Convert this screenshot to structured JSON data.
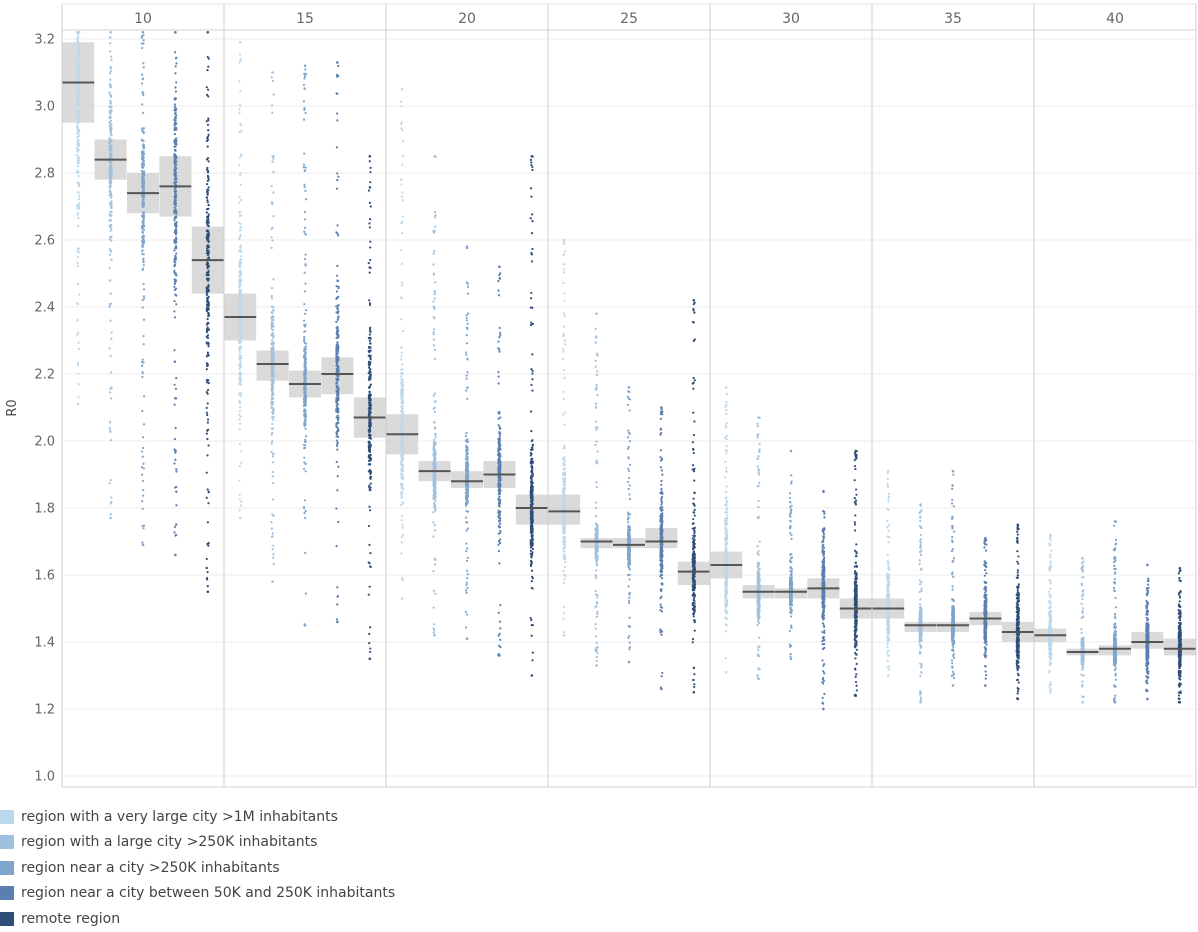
{
  "chart_data": {
    "type": "scatter",
    "chart_style": "faceted jitter strip plot with box (median line, interquartile band)",
    "ylabel": "R0",
    "ylim": [
      1.0,
      3.25
    ],
    "yticks": [
      1.0,
      1.2,
      1.4,
      1.6,
      1.8,
      2.0,
      2.2,
      2.4,
      2.6,
      2.8,
      3.0,
      3.2
    ],
    "grid": true,
    "legend_position": "bottom-left",
    "panels": [
      "10",
      "15",
      "20",
      "25",
      "30",
      "35",
      "40"
    ],
    "series": [
      {
        "name": "region with a very large city >1M inhabitants",
        "color": "#bcd8ec"
      },
      {
        "name": "region with a large city >250K inhabitants",
        "color": "#9fc1df"
      },
      {
        "name": "region near a city >250K inhabitants",
        "color": "#7ea5cc"
      },
      {
        "name": "region near a city between 50K and 250K inhabitants",
        "color": "#5b7fae"
      },
      {
        "name": "remote region",
        "color": "#2f4e7a"
      }
    ],
    "boxes": [
      {
        "panel": "10",
        "values": [
          {
            "median": 3.07,
            "q1": 2.95,
            "q3": 3.19,
            "min": 2.11,
            "max": 3.22
          },
          {
            "median": 2.84,
            "q1": 2.78,
            "q3": 2.9,
            "min": 1.77,
            "max": 3.22
          },
          {
            "median": 2.74,
            "q1": 2.68,
            "q3": 2.8,
            "min": 1.69,
            "max": 3.22
          },
          {
            "median": 2.76,
            "q1": 2.67,
            "q3": 2.85,
            "min": 1.66,
            "max": 3.22
          },
          {
            "median": 2.54,
            "q1": 2.44,
            "q3": 2.64,
            "min": 1.55,
            "max": 3.22
          }
        ]
      },
      {
        "panel": "15",
        "values": [
          {
            "median": 2.37,
            "q1": 2.3,
            "q3": 2.44,
            "min": 1.77,
            "max": 3.19
          },
          {
            "median": 2.23,
            "q1": 2.18,
            "q3": 2.27,
            "min": 1.58,
            "max": 3.1
          },
          {
            "median": 2.17,
            "q1": 2.13,
            "q3": 2.21,
            "min": 1.45,
            "max": 3.12
          },
          {
            "median": 2.2,
            "q1": 2.14,
            "q3": 2.25,
            "min": 1.46,
            "max": 3.13
          },
          {
            "median": 2.07,
            "q1": 2.01,
            "q3": 2.13,
            "min": 1.35,
            "max": 2.85
          }
        ]
      },
      {
        "panel": "20",
        "values": [
          {
            "median": 2.02,
            "q1": 1.96,
            "q3": 2.08,
            "min": 1.53,
            "max": 3.05
          },
          {
            "median": 1.91,
            "q1": 1.88,
            "q3": 1.94,
            "min": 1.42,
            "max": 2.85
          },
          {
            "median": 1.88,
            "q1": 1.86,
            "q3": 1.91,
            "min": 1.41,
            "max": 2.58
          },
          {
            "median": 1.9,
            "q1": 1.86,
            "q3": 1.94,
            "min": 1.36,
            "max": 2.52
          },
          {
            "median": 1.8,
            "q1": 1.75,
            "q3": 1.84,
            "min": 1.3,
            "max": 2.85
          }
        ]
      },
      {
        "panel": "25",
        "values": [
          {
            "median": 1.79,
            "q1": 1.75,
            "q3": 1.84,
            "min": 1.42,
            "max": 2.6
          },
          {
            "median": 1.7,
            "q1": 1.68,
            "q3": 1.71,
            "min": 1.33,
            "max": 2.38
          },
          {
            "median": 1.69,
            "q1": 1.68,
            "q3": 1.71,
            "min": 1.34,
            "max": 2.16
          },
          {
            "median": 1.7,
            "q1": 1.68,
            "q3": 1.74,
            "min": 1.26,
            "max": 2.1
          },
          {
            "median": 1.61,
            "q1": 1.57,
            "q3": 1.64,
            "min": 1.25,
            "max": 2.42
          }
        ]
      },
      {
        "panel": "30",
        "values": [
          {
            "median": 1.63,
            "q1": 1.59,
            "q3": 1.67,
            "min": 1.31,
            "max": 2.16
          },
          {
            "median": 1.55,
            "q1": 1.53,
            "q3": 1.57,
            "min": 1.29,
            "max": 2.07
          },
          {
            "median": 1.55,
            "q1": 1.53,
            "q3": 1.56,
            "min": 1.35,
            "max": 1.97
          },
          {
            "median": 1.56,
            "q1": 1.53,
            "q3": 1.59,
            "min": 1.2,
            "max": 1.85
          },
          {
            "median": 1.5,
            "q1": 1.47,
            "q3": 1.53,
            "min": 1.24,
            "max": 1.97
          }
        ]
      },
      {
        "panel": "35",
        "values": [
          {
            "median": 1.5,
            "q1": 1.47,
            "q3": 1.53,
            "min": 1.3,
            "max": 1.91
          },
          {
            "median": 1.45,
            "q1": 1.43,
            "q3": 1.46,
            "min": 1.22,
            "max": 1.81
          },
          {
            "median": 1.45,
            "q1": 1.43,
            "q3": 1.46,
            "min": 1.27,
            "max": 1.91
          },
          {
            "median": 1.47,
            "q1": 1.45,
            "q3": 1.49,
            "min": 1.27,
            "max": 1.71
          },
          {
            "median": 1.43,
            "q1": 1.4,
            "q3": 1.46,
            "min": 1.23,
            "max": 1.75
          }
        ]
      },
      {
        "panel": "40",
        "values": [
          {
            "median": 1.42,
            "q1": 1.4,
            "q3": 1.44,
            "min": 1.25,
            "max": 1.72
          },
          {
            "median": 1.37,
            "q1": 1.36,
            "q3": 1.38,
            "min": 1.22,
            "max": 1.65
          },
          {
            "median": 1.38,
            "q1": 1.36,
            "q3": 1.39,
            "min": 1.22,
            "max": 1.76
          },
          {
            "median": 1.4,
            "q1": 1.38,
            "q3": 1.43,
            "min": 1.23,
            "max": 1.63
          },
          {
            "median": 1.38,
            "q1": 1.36,
            "q3": 1.41,
            "min": 1.22,
            "max": 1.62
          }
        ]
      }
    ]
  }
}
